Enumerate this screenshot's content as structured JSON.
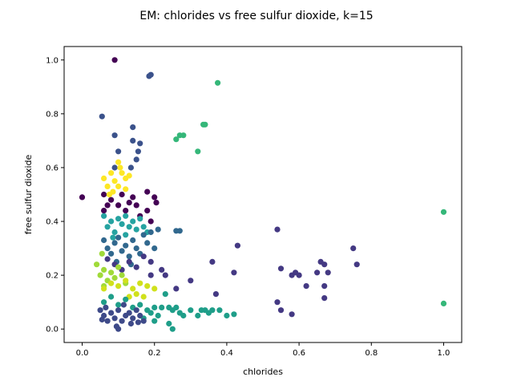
{
  "chart_data": {
    "type": "scatter",
    "title": "EM: chlorides vs free sulfur dioxide, k=15",
    "xlabel": "chlorides",
    "ylabel": "free sulfur dioxide",
    "xlim": [
      -0.05,
      1.05
    ],
    "ylim": [
      -0.05,
      1.05
    ],
    "xticks": [
      "0.0",
      "0.2",
      "0.4",
      "0.6",
      "0.8",
      "1.0"
    ],
    "yticks": [
      "0.0",
      "0.2",
      "0.4",
      "0.6",
      "0.8",
      "1.0"
    ],
    "grid": false,
    "legend": "none",
    "series": [
      {
        "color": "#3b528b",
        "points": [
          [
            0.055,
            0.79
          ],
          [
            0.09,
            0.72
          ],
          [
            0.14,
            0.75
          ],
          [
            0.19,
            0.945
          ],
          [
            0.185,
            0.94
          ],
          [
            0.1,
            0.66
          ],
          [
            0.14,
            0.7
          ],
          [
            0.16,
            0.69
          ],
          [
            0.155,
            0.66
          ],
          [
            0.135,
            0.6
          ],
          [
            0.09,
            0.6
          ],
          [
            0.15,
            0.63
          ]
        ]
      },
      {
        "color": "#440154",
        "points": [
          [
            0.09,
            1.0
          ],
          [
            0.0,
            0.49
          ],
          [
            0.06,
            0.5
          ],
          [
            0.08,
            0.48
          ],
          [
            0.1,
            0.46
          ],
          [
            0.12,
            0.44
          ],
          [
            0.14,
            0.49
          ],
          [
            0.16,
            0.42
          ],
          [
            0.18,
            0.44
          ],
          [
            0.2,
            0.49
          ],
          [
            0.205,
            0.47
          ],
          [
            0.18,
            0.51
          ],
          [
            0.19,
            0.4
          ],
          [
            0.15,
            0.46
          ],
          [
            0.07,
            0.46
          ],
          [
            0.11,
            0.5
          ],
          [
            0.13,
            0.47
          ],
          [
            0.06,
            0.44
          ]
        ]
      },
      {
        "color": "#fde725",
        "points": [
          [
            0.06,
            0.56
          ],
          [
            0.07,
            0.53
          ],
          [
            0.08,
            0.58
          ],
          [
            0.09,
            0.55
          ],
          [
            0.1,
            0.62
          ],
          [
            0.11,
            0.58
          ],
          [
            0.12,
            0.56
          ],
          [
            0.13,
            0.57
          ],
          [
            0.1,
            0.53
          ],
          [
            0.085,
            0.51
          ],
          [
            0.12,
            0.52
          ],
          [
            0.105,
            0.6
          ],
          [
            0.075,
            0.5
          ]
        ]
      },
      {
        "color": "#35b779",
        "points": [
          [
            0.375,
            0.915
          ],
          [
            0.27,
            0.72
          ],
          [
            0.26,
            0.705
          ],
          [
            0.28,
            0.72
          ],
          [
            0.34,
            0.76
          ],
          [
            0.335,
            0.76
          ],
          [
            0.32,
            0.66
          ],
          [
            1.0,
            0.435
          ],
          [
            1.0,
            0.095
          ]
        ]
      },
      {
        "color": "#26a3a1",
        "points": [
          [
            0.06,
            0.42
          ],
          [
            0.07,
            0.38
          ],
          [
            0.08,
            0.4
          ],
          [
            0.09,
            0.36
          ],
          [
            0.1,
            0.41
          ],
          [
            0.11,
            0.39
          ],
          [
            0.12,
            0.42
          ],
          [
            0.13,
            0.38
          ],
          [
            0.14,
            0.4
          ],
          [
            0.15,
            0.37
          ],
          [
            0.16,
            0.41
          ],
          [
            0.17,
            0.38
          ],
          [
            0.18,
            0.36
          ],
          [
            0.085,
            0.34
          ],
          [
            0.12,
            0.35
          ]
        ]
      },
      {
        "color": "#31688e",
        "points": [
          [
            0.06,
            0.33
          ],
          [
            0.07,
            0.3
          ],
          [
            0.08,
            0.28
          ],
          [
            0.09,
            0.32
          ],
          [
            0.1,
            0.34
          ],
          [
            0.11,
            0.29
          ],
          [
            0.12,
            0.31
          ],
          [
            0.13,
            0.27
          ],
          [
            0.14,
            0.33
          ],
          [
            0.15,
            0.3
          ],
          [
            0.16,
            0.28
          ],
          [
            0.17,
            0.35
          ],
          [
            0.18,
            0.32
          ],
          [
            0.19,
            0.36
          ],
          [
            0.21,
            0.37
          ],
          [
            0.26,
            0.365
          ],
          [
            0.27,
            0.365
          ],
          [
            0.2,
            0.3
          ],
          [
            0.095,
            0.25
          ],
          [
            0.135,
            0.24
          ]
        ]
      },
      {
        "color": "#443983",
        "points": [
          [
            0.07,
            0.26
          ],
          [
            0.09,
            0.24
          ],
          [
            0.11,
            0.22
          ],
          [
            0.13,
            0.25
          ],
          [
            0.15,
            0.23
          ],
          [
            0.17,
            0.27
          ],
          [
            0.19,
            0.25
          ],
          [
            0.19,
            0.2
          ],
          [
            0.22,
            0.22
          ],
          [
            0.23,
            0.2
          ],
          [
            0.26,
            0.15
          ],
          [
            0.3,
            0.18
          ],
          [
            0.36,
            0.25
          ],
          [
            0.42,
            0.21
          ],
          [
            0.43,
            0.31
          ],
          [
            0.37,
            0.13
          ],
          [
            0.54,
            0.37
          ],
          [
            0.55,
            0.225
          ],
          [
            0.58,
            0.2
          ],
          [
            0.59,
            0.21
          ],
          [
            0.6,
            0.2
          ],
          [
            0.62,
            0.16
          ],
          [
            0.65,
            0.21
          ],
          [
            0.66,
            0.25
          ],
          [
            0.67,
            0.24
          ],
          [
            0.68,
            0.21
          ],
          [
            0.67,
            0.16
          ],
          [
            0.67,
            0.115
          ],
          [
            0.75,
            0.3
          ],
          [
            0.76,
            0.24
          ],
          [
            0.54,
            0.1
          ],
          [
            0.55,
            0.07
          ],
          [
            0.58,
            0.055
          ]
        ]
      },
      {
        "color": "#a0da39",
        "points": [
          [
            0.04,
            0.24
          ],
          [
            0.05,
            0.2
          ],
          [
            0.06,
            0.22
          ],
          [
            0.07,
            0.18
          ],
          [
            0.08,
            0.21
          ],
          [
            0.09,
            0.19
          ],
          [
            0.1,
            0.23
          ],
          [
            0.11,
            0.2
          ],
          [
            0.12,
            0.17
          ],
          [
            0.055,
            0.28
          ],
          [
            0.06,
            0.16
          ]
        ]
      },
      {
        "color": "#d0e11c",
        "points": [
          [
            0.06,
            0.15
          ],
          [
            0.08,
            0.17
          ],
          [
            0.1,
            0.16
          ],
          [
            0.12,
            0.18
          ],
          [
            0.14,
            0.15
          ],
          [
            0.16,
            0.17
          ],
          [
            0.18,
            0.16
          ],
          [
            0.17,
            0.12
          ],
          [
            0.15,
            0.13
          ],
          [
            0.13,
            0.12
          ],
          [
            0.2,
            0.15
          ]
        ]
      },
      {
        "color": "#1f9e89",
        "points": [
          [
            0.06,
            0.1
          ],
          [
            0.08,
            0.12
          ],
          [
            0.1,
            0.09
          ],
          [
            0.12,
            0.11
          ],
          [
            0.14,
            0.08
          ],
          [
            0.16,
            0.09
          ],
          [
            0.18,
            0.07
          ],
          [
            0.2,
            0.08
          ],
          [
            0.22,
            0.08
          ],
          [
            0.23,
            0.13
          ],
          [
            0.24,
            0.08
          ],
          [
            0.25,
            0.07
          ],
          [
            0.26,
            0.08
          ],
          [
            0.27,
            0.06
          ],
          [
            0.3,
            0.07
          ],
          [
            0.32,
            0.05
          ],
          [
            0.33,
            0.07
          ],
          [
            0.35,
            0.06
          ],
          [
            0.38,
            0.07
          ],
          [
            0.4,
            0.05
          ],
          [
            0.42,
            0.055
          ],
          [
            0.24,
            0.02
          ],
          [
            0.25,
            0.0
          ],
          [
            0.2,
            0.03
          ],
          [
            0.17,
            0.04
          ],
          [
            0.19,
            0.06
          ],
          [
            0.21,
            0.05
          ],
          [
            0.34,
            0.07
          ],
          [
            0.36,
            0.07
          ],
          [
            0.28,
            0.05
          ]
        ]
      },
      {
        "color": "#3e4a89",
        "points": [
          [
            0.05,
            0.07
          ],
          [
            0.06,
            0.05
          ],
          [
            0.07,
            0.03
          ],
          [
            0.08,
            0.06
          ],
          [
            0.09,
            0.04
          ],
          [
            0.1,
            0.07
          ],
          [
            0.11,
            0.03
          ],
          [
            0.12,
            0.05
          ],
          [
            0.13,
            0.06
          ],
          [
            0.14,
            0.04
          ],
          [
            0.15,
            0.07
          ],
          [
            0.16,
            0.05
          ],
          [
            0.17,
            0.03
          ],
          [
            0.055,
            0.035
          ],
          [
            0.065,
            0.08
          ],
          [
            0.095,
            0.01
          ],
          [
            0.115,
            0.09
          ],
          [
            0.135,
            0.02
          ],
          [
            0.155,
            0.025
          ],
          [
            0.1,
            0.0
          ]
        ]
      }
    ]
  }
}
